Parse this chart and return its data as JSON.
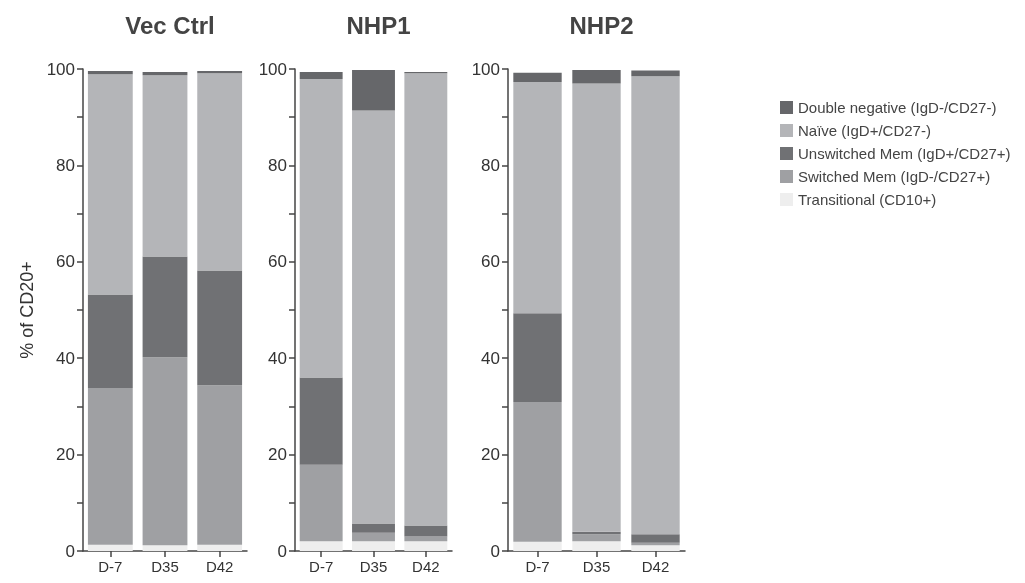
{
  "chart_data": [
    {
      "type": "bar",
      "title": "Vec Ctrl",
      "ylabel": "% of CD20+",
      "categories": [
        "D-7",
        "D35",
        "D42"
      ],
      "stacked": true,
      "legend": false,
      "ylim": [
        0,
        100
      ],
      "yticks": [
        0,
        {
          "value": 10,
          "label": null
        },
        20,
        {
          "value": 30,
          "label": null
        },
        40,
        {
          "value": 50,
          "label": null
        },
        60,
        {
          "value": 70,
          "label": null
        },
        80,
        {
          "value": 90,
          "label": null
        },
        100
      ],
      "series": [
        {
          "color": "#eeeeee",
          "values": [
            1.3,
            1.2,
            1.3
          ]
        },
        {
          "color": "#9fa0a3",
          "values": [
            32.5,
            39.0,
            33.1
          ]
        },
        {
          "color": "#707174",
          "values": [
            19.4,
            20.9,
            23.8
          ]
        },
        {
          "color": "#b4b5b8",
          "values": [
            45.7,
            37.6,
            40.9
          ]
        },
        {
          "color": "#66676a",
          "values": [
            0.7,
            0.7,
            0.5
          ]
        }
      ]
    },
    {
      "type": "bar",
      "title": "NHP1",
      "categories": [
        "D-7",
        "D35",
        "D42"
      ],
      "stacked": true,
      "legend": false,
      "ylim": [
        0,
        100
      ],
      "yticks": [
        0,
        {
          "value": 10,
          "label": null
        },
        20,
        {
          "value": 30,
          "label": null
        },
        40,
        {
          "value": 50,
          "label": null
        },
        60,
        {
          "value": 70,
          "label": null
        },
        80,
        {
          "value": 90,
          "label": null
        },
        100
      ],
      "series": [
        {
          "color": "#eeeeee",
          "values": [
            2.0,
            2.0,
            2.0
          ]
        },
        {
          "color": "#9fa0a3",
          "values": [
            15.9,
            1.8,
            1.0
          ]
        },
        {
          "color": "#707174",
          "values": [
            18.1,
            1.9,
            2.3
          ]
        },
        {
          "color": "#b4b5b8",
          "values": [
            61.9,
            85.7,
            93.8
          ]
        },
        {
          "color": "#66676a",
          "values": [
            1.5,
            8.4,
            0.3
          ]
        }
      ]
    },
    {
      "type": "bar",
      "title": "NHP2",
      "categories": [
        "D-7",
        "D35",
        "D42"
      ],
      "stacked": true,
      "legend": "right",
      "ylim": [
        0,
        100
      ],
      "yticks": [
        0,
        {
          "value": 10,
          "label": null
        },
        20,
        {
          "value": 30,
          "label": null
        },
        40,
        {
          "value": 50,
          "label": null
        },
        60,
        {
          "value": 70,
          "label": null
        },
        80,
        {
          "value": 90,
          "label": null
        },
        100
      ],
      "series": [
        {
          "name": "Transitional (CD10+)",
          "color": "#eeeeee",
          "values": [
            1.9,
            2.0,
            1.2
          ]
        },
        {
          "name": "Switched Mem (IgD-/CD27+)",
          "color": "#9fa0a3",
          "values": [
            29.0,
            1.5,
            0.5
          ]
        },
        {
          "name": "Unswitched Mem (IgD+/CD27+)",
          "color": "#707174",
          "values": [
            18.4,
            0.5,
            1.8
          ]
        },
        {
          "name": "Naïve (IgD+/CD27-)",
          "color": "#b4b5b8",
          "values": [
            48.0,
            93.0,
            95.0
          ]
        },
        {
          "name": "Double negative (IgD-/CD27-)",
          "color": "#66676a",
          "values": [
            1.9,
            2.8,
            1.2
          ]
        }
      ]
    }
  ]
}
